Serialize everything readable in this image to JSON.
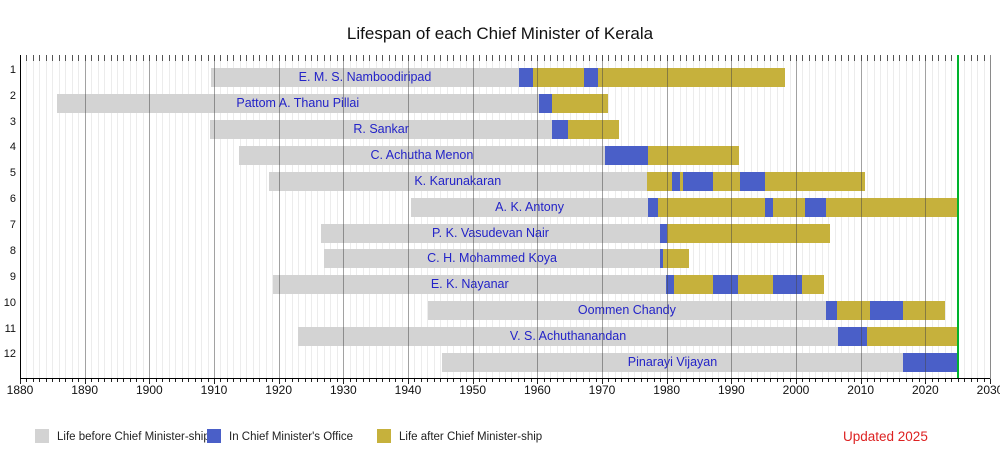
{
  "title": "Lifespan of each Chief Minister of Kerala",
  "updated_note": "Updated 2025",
  "colors": {
    "before": "#d3d3d3",
    "office": "#4a5fc8",
    "after": "#c6b13c",
    "now_line": "#00b32d",
    "name_text": "#2323c8",
    "updated_text": "#dd2222"
  },
  "legend": [
    {
      "key": "before",
      "label": "Life before Chief Minister-ship"
    },
    {
      "key": "office",
      "label": "In Chief Minister's Office"
    },
    {
      "key": "after",
      "label": "Life after Chief Minister-ship"
    }
  ],
  "chart_data": {
    "type": "bar",
    "subtype": "lifespan-timeline-gantt",
    "x_axis": {
      "min": 1880,
      "max": 2030,
      "major_tick_interval": 10,
      "minor_tick_interval": 1,
      "tick_labels": [
        "1880",
        "1890",
        "1900",
        "1910",
        "1920",
        "1930",
        "1940",
        "1950",
        "1960",
        "1970",
        "1980",
        "1990",
        "2000",
        "2010",
        "2020",
        "2030"
      ]
    },
    "y_axis_row_numbers": [
      "1",
      "2",
      "3",
      "4",
      "5",
      "6",
      "7",
      "8",
      "9",
      "10",
      "11",
      "12"
    ],
    "now_line_year": 2025,
    "rows": [
      {
        "index": 1,
        "name": "E. M. S. Namboodiripad",
        "segments": [
          {
            "t": "before",
            "a": 1909.5,
            "b": 1957.2
          },
          {
            "t": "office",
            "a": 1957.2,
            "b": 1959.4
          },
          {
            "t": "after",
            "a": 1959.4,
            "b": 1967.2
          },
          {
            "t": "office",
            "a": 1967.2,
            "b": 1969.4
          },
          {
            "t": "after",
            "a": 1969.4,
            "b": 1998.3
          }
        ]
      },
      {
        "index": 2,
        "name": "Pattom A. Thanu Pillai",
        "segments": [
          {
            "t": "before",
            "a": 1885.7,
            "b": 1960.2
          },
          {
            "t": "office",
            "a": 1960.2,
            "b": 1962.3
          },
          {
            "t": "after",
            "a": 1962.3,
            "b": 1970.9
          }
        ]
      },
      {
        "index": 3,
        "name": "R. Sankar",
        "segments": [
          {
            "t": "before",
            "a": 1909.4,
            "b": 1962.3
          },
          {
            "t": "office",
            "a": 1962.3,
            "b": 1964.8
          },
          {
            "t": "after",
            "a": 1964.8,
            "b": 1972.7
          }
        ]
      },
      {
        "index": 4,
        "name": "C. Achutha Menon",
        "segments": [
          {
            "t": "before",
            "a": 1913.9,
            "b": 1970.4
          },
          {
            "t": "office",
            "a": 1970.4,
            "b": 1977.1
          },
          {
            "t": "after",
            "a": 1977.1,
            "b": 1991.2
          }
        ]
      },
      {
        "index": 5,
        "name": "K. Karunakaran",
        "segments": [
          {
            "t": "before",
            "a": 1918.5,
            "b": 1976.9
          },
          {
            "t": "after",
            "a": 1976.9,
            "b": 1980.9
          },
          {
            "t": "office",
            "a": 1980.9,
            "b": 1982.1
          },
          {
            "t": "after",
            "a": 1982.1,
            "b": 1982.5
          },
          {
            "t": "office",
            "a": 1982.5,
            "b": 1987.1
          },
          {
            "t": "after",
            "a": 1987.1,
            "b": 1991.3
          },
          {
            "t": "office",
            "a": 1991.3,
            "b": 1995.2
          },
          {
            "t": "after",
            "a": 1995.2,
            "b": 2010.6
          }
        ]
      },
      {
        "index": 6,
        "name": "A. K. Antony",
        "segments": [
          {
            "t": "before",
            "a": 1940.5,
            "b": 1977.1
          },
          {
            "t": "office",
            "a": 1977.1,
            "b": 1978.7
          },
          {
            "t": "after",
            "a": 1978.7,
            "b": 1995.2
          },
          {
            "t": "office",
            "a": 1995.2,
            "b": 1996.4
          },
          {
            "t": "after",
            "a": 1996.4,
            "b": 2001.4
          },
          {
            "t": "office",
            "a": 2001.4,
            "b": 2004.6
          },
          {
            "t": "after",
            "a": 2004.6,
            "b": 2025.0
          }
        ]
      },
      {
        "index": 7,
        "name": "P. K. Vasudevan Nair",
        "segments": [
          {
            "t": "before",
            "a": 1926.6,
            "b": 1978.9
          },
          {
            "t": "office",
            "a": 1978.9,
            "b": 1980.1
          },
          {
            "t": "after",
            "a": 1980.1,
            "b": 2005.2
          }
        ]
      },
      {
        "index": 8,
        "name": "C. H. Mohammed Koya",
        "segments": [
          {
            "t": "before",
            "a": 1927.0,
            "b": 1979.0
          },
          {
            "t": "office",
            "a": 1979.0,
            "b": 1979.4
          },
          {
            "t": "after",
            "a": 1979.4,
            "b": 1983.5
          }
        ]
      },
      {
        "index": 9,
        "name": "E. K. Nayanar",
        "segments": [
          {
            "t": "before",
            "a": 1919.2,
            "b": 1979.9
          },
          {
            "t": "office",
            "a": 1979.9,
            "b": 1981.2
          },
          {
            "t": "after",
            "a": 1981.2,
            "b": 1987.2
          },
          {
            "t": "office",
            "a": 1987.2,
            "b": 1991.1
          },
          {
            "t": "after",
            "a": 1991.1,
            "b": 1996.4
          },
          {
            "t": "office",
            "a": 1996.4,
            "b": 2001.0
          },
          {
            "t": "after",
            "a": 2001.0,
            "b": 2004.3
          }
        ]
      },
      {
        "index": 10,
        "name": "Oommen Chandy",
        "segments": [
          {
            "t": "before",
            "a": 1943.1,
            "b": 2004.6
          },
          {
            "t": "office",
            "a": 2004.6,
            "b": 2006.4
          },
          {
            "t": "after",
            "a": 2006.4,
            "b": 2011.4
          },
          {
            "t": "office",
            "a": 2011.4,
            "b": 2016.6
          },
          {
            "t": "after",
            "a": 2016.6,
            "b": 2023.1
          }
        ]
      },
      {
        "index": 11,
        "name": "V. S. Achuthanandan",
        "segments": [
          {
            "t": "before",
            "a": 1923.0,
            "b": 2006.5
          },
          {
            "t": "office",
            "a": 2006.5,
            "b": 2011.0
          },
          {
            "t": "after",
            "a": 2011.0,
            "b": 2025.0
          }
        ]
      },
      {
        "index": 12,
        "name": "Pinarayi Vijayan",
        "segments": [
          {
            "t": "before",
            "a": 1945.3,
            "b": 2016.5
          },
          {
            "t": "office",
            "a": 2016.5,
            "b": 2025.0
          }
        ]
      }
    ]
  }
}
